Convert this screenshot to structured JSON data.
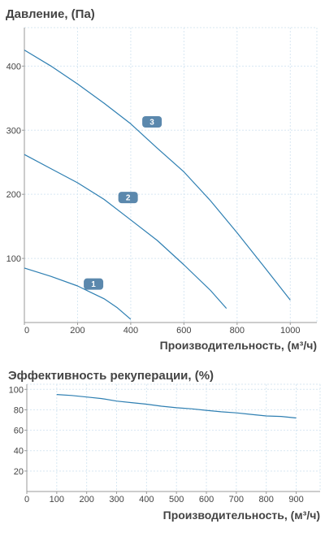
{
  "colors": {
    "curve": "#2e7fb2",
    "grid": "#d7e7f2",
    "axis": "#999999",
    "badge": "#5b88ad"
  },
  "chart_data": [
    {
      "type": "line",
      "title": "Давление, (Па)",
      "xlabel": "Производительность, (м³/ч)",
      "ylabel": "",
      "xlim": [
        0,
        1100
      ],
      "ylim": [
        0,
        460
      ],
      "xticks": [
        0,
        200,
        400,
        600,
        800,
        1000
      ],
      "yticks": [
        100,
        200,
        300,
        400
      ],
      "grid": true,
      "series": [
        {
          "label": "1",
          "label_at": [
            260,
            60
          ],
          "x": [
            0,
            100,
            200,
            250,
            300,
            350,
            400
          ],
          "y": [
            85,
            72,
            57,
            47,
            37,
            23,
            5
          ]
        },
        {
          "label": "2",
          "label_at": [
            390,
            195
          ],
          "x": [
            0,
            100,
            200,
            300,
            400,
            500,
            600,
            700,
            760
          ],
          "y": [
            262,
            240,
            218,
            192,
            160,
            128,
            90,
            50,
            22
          ]
        },
        {
          "label": "3",
          "label_at": [
            480,
            313
          ],
          "x": [
            0,
            100,
            200,
            300,
            400,
            500,
            600,
            700,
            800,
            900,
            1000
          ],
          "y": [
            425,
            400,
            372,
            342,
            310,
            272,
            235,
            190,
            140,
            88,
            35
          ]
        }
      ]
    },
    {
      "type": "line",
      "title": "Эффективность рекуперации, (%)",
      "xlabel": "Производительность, (м³/ч)",
      "ylabel": "",
      "xlim": [
        0,
        980
      ],
      "ylim": [
        0,
        105
      ],
      "xticks": [
        0,
        100,
        200,
        300,
        400,
        500,
        600,
        700,
        800,
        900
      ],
      "yticks": [
        20,
        40,
        60,
        80,
        100
      ],
      "grid": true,
      "series": [
        {
          "x": [
            100,
            150,
            200,
            250,
            300,
            350,
            400,
            450,
            500,
            550,
            600,
            650,
            700,
            750,
            800,
            850,
            900
          ],
          "y": [
            95,
            94,
            92.5,
            91,
            88.5,
            87,
            85.5,
            83.5,
            82,
            81,
            79.5,
            78,
            77,
            75.5,
            74,
            73.5,
            72
          ]
        }
      ]
    }
  ]
}
